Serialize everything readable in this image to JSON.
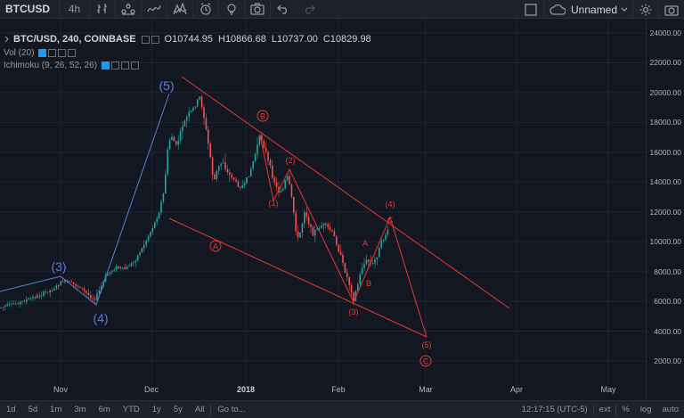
{
  "toolbar": {
    "symbol": "BTCUSD",
    "interval": "4h",
    "layout_name": "Unnamed",
    "icons": [
      "bar-chart-icon",
      "compare-icon",
      "indicator-icon",
      "template-icon",
      "alert-icon",
      "replay-icon",
      "undo-icon",
      "redo-icon"
    ]
  },
  "legend": {
    "symbol_line": "BTC/USD, 240, COINBASE",
    "open_key": "O",
    "open": "10744.95",
    "high_key": "H",
    "high": "10866.68",
    "low_key": "L",
    "low": "10737.00",
    "close_key": "C",
    "close": "10829.98",
    "vol": "Vol (20)",
    "ichimoku": "Ichimoku (9, 26, 52, 26)"
  },
  "price_axis": {
    "labels": [
      "24000.00",
      "22000.00",
      "20000.00",
      "18000.00",
      "16000.00",
      "14000.00",
      "12000.00",
      "10000.00",
      "8000.00",
      "6000.00",
      "4000.00",
      "2000.00"
    ]
  },
  "time_axis": {
    "labels": [
      {
        "text": "Nov",
        "bold": false
      },
      {
        "text": "Dec",
        "bold": false
      },
      {
        "text": "2018",
        "bold": true
      },
      {
        "text": "Feb",
        "bold": false
      },
      {
        "text": "Mar",
        "bold": false
      },
      {
        "text": "Apr",
        "bold": false
      },
      {
        "text": "May",
        "bold": false
      }
    ]
  },
  "annotations": {
    "blue_waves": [
      "(3)",
      "(4)",
      "(5)"
    ],
    "red_waves": [
      "(1)",
      "(2)",
      "(3)",
      "(4)",
      "(5)"
    ],
    "circled": [
      "A",
      "B",
      "C"
    ],
    "small": [
      "A",
      "B",
      "C"
    ]
  },
  "bottombar": {
    "ranges": [
      "1d",
      "5d",
      "1m",
      "3m",
      "6m",
      "YTD",
      "1y",
      "5y",
      "All"
    ],
    "goto": "Go to...",
    "clock": "12:17:15 (UTC-5)",
    "ext": "ext",
    "percent": "%",
    "log": "log",
    "auto": "auto"
  },
  "colors": {
    "background": "#131722",
    "up": "#26a69a",
    "down": "#ef5350",
    "blue_wave": "#5b7fd6",
    "red_wave": "#e53935"
  }
}
